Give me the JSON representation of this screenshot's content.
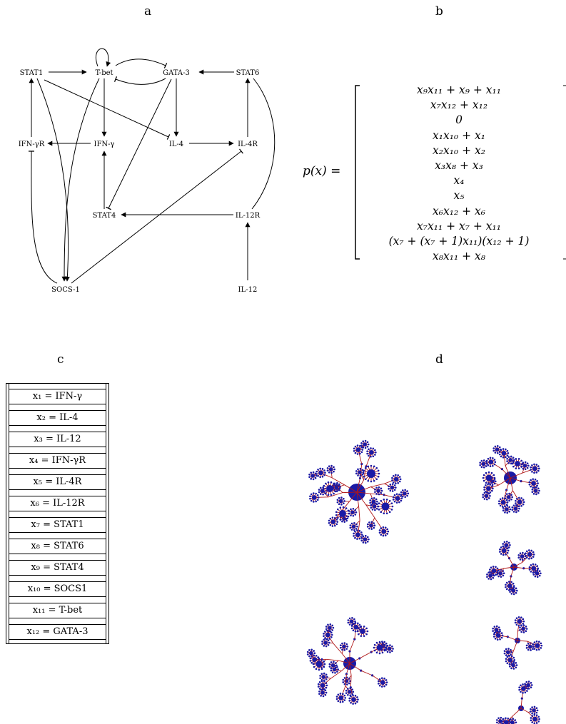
{
  "panels": {
    "a": "a",
    "b": "b",
    "c": "c",
    "d": "d"
  },
  "network": {
    "nodes": {
      "stat1": "STAT1",
      "tbet": "T-bet",
      "gata3": "GATA-3",
      "stat6": "STAT6",
      "ifngr": "IFN-γR",
      "ifng": "IFN-γ",
      "il4": "IL-4",
      "il4r": "IL-4R",
      "stat4": "STAT4",
      "il12r": "IL-12R",
      "socs1": "SOCS-1",
      "il12": "IL-12"
    }
  },
  "polynomial": {
    "lhs": "p(x) =",
    "entries": [
      "x₉x₁₁ + x₉ + x₁₁",
      "x₇x₁₂ + x₁₂",
      "0",
      "x₁x₁₀ + x₁",
      "x₂x₁₀ + x₂",
      "x₃x₈ + x₃",
      "x₄",
      "x₅",
      "x₆x₁₂ + x₆",
      "x₇x₁₁ + x₇ + x₁₁",
      "(x₇ + (x₇ + 1)x₁₁)(x₁₂ + 1)",
      "x₈x₁₁ + x₈"
    ]
  },
  "variables": [
    "x₁ = IFN-γ",
    "x₂ = IL-4",
    "x₃ = IL-12",
    "x₄ = IFN-γR",
    "x₅ = IL-4R",
    "x₆ = IL-12R",
    "x₇ = STAT1",
    "x₈ = STAT6",
    "x₉ = STAT4",
    "x₁₀ = SOCS1",
    "x₁₁ = T-bet",
    "x₁₂ = GATA-3"
  ],
  "colors": {
    "node": "#1a1aa6",
    "edge": "#b01818",
    "ink": "#000000"
  }
}
